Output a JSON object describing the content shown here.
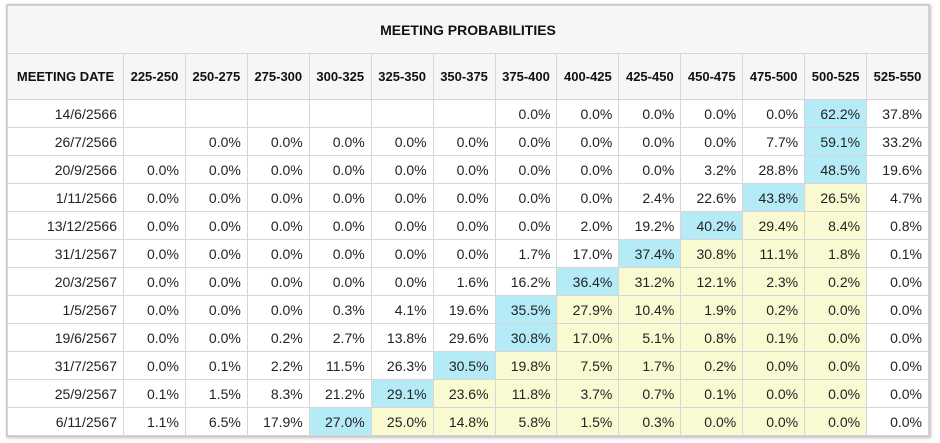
{
  "title": "MEETING PROBABILITIES",
  "columns": [
    "MEETING DATE",
    "225-250",
    "250-275",
    "275-300",
    "300-325",
    "325-350",
    "350-375",
    "375-400",
    "400-425",
    "425-450",
    "450-475",
    "475-500",
    "500-525",
    "525-550"
  ],
  "rows": [
    {
      "date": "14/6/2566",
      "cells": [
        "",
        "",
        "",
        "",
        "",
        "",
        "0.0%",
        "0.0%",
        "0.0%",
        "0.0%",
        "0.0%",
        "62.2%",
        "37.8%"
      ],
      "highlight": 11
    },
    {
      "date": "26/7/2566",
      "cells": [
        "",
        "0.0%",
        "0.0%",
        "0.0%",
        "0.0%",
        "0.0%",
        "0.0%",
        "0.0%",
        "0.0%",
        "0.0%",
        "7.7%",
        "59.1%",
        "33.2%"
      ],
      "highlight": 11
    },
    {
      "date": "20/9/2566",
      "cells": [
        "0.0%",
        "0.0%",
        "0.0%",
        "0.0%",
        "0.0%",
        "0.0%",
        "0.0%",
        "0.0%",
        "0.0%",
        "3.2%",
        "28.8%",
        "48.5%",
        "19.6%"
      ],
      "highlight": 11
    },
    {
      "date": "1/11/2566",
      "cells": [
        "0.0%",
        "0.0%",
        "0.0%",
        "0.0%",
        "0.0%",
        "0.0%",
        "0.0%",
        "0.0%",
        "2.4%",
        "22.6%",
        "43.8%",
        "26.5%",
        "4.7%"
      ],
      "highlight": 10
    },
    {
      "date": "13/12/2566",
      "cells": [
        "0.0%",
        "0.0%",
        "0.0%",
        "0.0%",
        "0.0%",
        "0.0%",
        "0.0%",
        "2.0%",
        "19.2%",
        "40.2%",
        "29.4%",
        "8.4%",
        "0.8%"
      ],
      "highlight": 9
    },
    {
      "date": "31/1/2567",
      "cells": [
        "0.0%",
        "0.0%",
        "0.0%",
        "0.0%",
        "0.0%",
        "0.0%",
        "1.7%",
        "17.0%",
        "37.4%",
        "30.8%",
        "11.1%",
        "1.8%",
        "0.1%"
      ],
      "highlight": 8
    },
    {
      "date": "20/3/2567",
      "cells": [
        "0.0%",
        "0.0%",
        "0.0%",
        "0.0%",
        "0.0%",
        "1.6%",
        "16.2%",
        "36.4%",
        "31.2%",
        "12.1%",
        "2.3%",
        "0.2%",
        "0.0%"
      ],
      "highlight": 7
    },
    {
      "date": "1/5/2567",
      "cells": [
        "0.0%",
        "0.0%",
        "0.0%",
        "0.3%",
        "4.1%",
        "19.6%",
        "35.5%",
        "27.9%",
        "10.4%",
        "1.9%",
        "0.2%",
        "0.0%",
        "0.0%"
      ],
      "highlight": 6
    },
    {
      "date": "19/6/2567",
      "cells": [
        "0.0%",
        "0.0%",
        "0.2%",
        "2.7%",
        "13.8%",
        "29.6%",
        "30.8%",
        "17.0%",
        "5.1%",
        "0.8%",
        "0.1%",
        "0.0%",
        "0.0%"
      ],
      "highlight": 6
    },
    {
      "date": "31/7/2567",
      "cells": [
        "0.0%",
        "0.1%",
        "2.2%",
        "11.5%",
        "26.3%",
        "30.5%",
        "19.8%",
        "7.5%",
        "1.7%",
        "0.2%",
        "0.0%",
        "0.0%",
        "0.0%"
      ],
      "highlight": 5
    },
    {
      "date": "25/9/2567",
      "cells": [
        "0.1%",
        "1.5%",
        "8.3%",
        "21.2%",
        "29.1%",
        "23.6%",
        "11.8%",
        "3.7%",
        "0.7%",
        "0.1%",
        "0.0%",
        "0.0%",
        "0.0%"
      ],
      "highlight": 4
    },
    {
      "date": "6/11/2567",
      "cells": [
        "1.1%",
        "6.5%",
        "17.9%",
        "27.0%",
        "25.0%",
        "14.8%",
        "5.8%",
        "1.5%",
        "0.3%",
        "0.0%",
        "0.0%",
        "0.0%",
        "0.0%"
      ],
      "highlight": 3
    }
  ],
  "colors": {
    "highlight_current": "#b5ebf7",
    "highlight_lower_rates": "#fafad2",
    "header_background": "#f6f6f6"
  }
}
